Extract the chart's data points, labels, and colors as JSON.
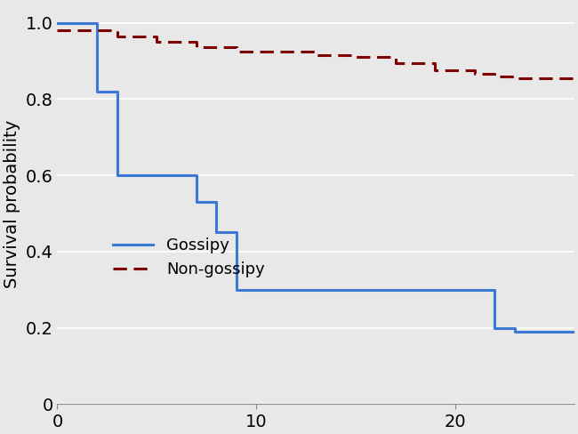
{
  "gossipy_x": [
    0,
    2,
    2,
    3,
    3,
    7,
    7,
    8,
    8,
    9,
    9,
    15,
    15,
    17,
    17,
    22,
    22,
    23,
    23,
    26
  ],
  "gossipy_y": [
    1.0,
    1.0,
    0.82,
    0.82,
    0.6,
    0.6,
    0.53,
    0.53,
    0.45,
    0.45,
    0.3,
    0.3,
    0.3,
    0.3,
    0.3,
    0.3,
    0.2,
    0.2,
    0.19,
    0.19
  ],
  "non_gossipy_x": [
    0,
    3,
    3,
    5,
    5,
    7,
    7,
    9,
    9,
    13,
    13,
    15,
    15,
    17,
    17,
    19,
    19,
    21,
    21,
    22,
    22,
    23,
    23,
    26
  ],
  "non_gossipy_y": [
    0.98,
    0.98,
    0.965,
    0.965,
    0.95,
    0.95,
    0.935,
    0.935,
    0.925,
    0.925,
    0.915,
    0.915,
    0.91,
    0.91,
    0.895,
    0.895,
    0.875,
    0.875,
    0.865,
    0.865,
    0.86,
    0.86,
    0.855,
    0.855
  ],
  "gossipy_color": "#3c78d8",
  "non_gossipy_color": "#7f0000",
  "background_color": "#e8e8e8",
  "ylabel": "Survival probability",
  "ylim": [
    0,
    1.05
  ],
  "xlim": [
    0,
    26
  ],
  "yticks": [
    0,
    0.2,
    0.4,
    0.6,
    0.8,
    1.0
  ],
  "ytick_labels": [
    "0",
    "0.2",
    "0.4",
    "0.6",
    "0.8",
    "1.0"
  ],
  "xticks": [
    0,
    10,
    20
  ],
  "xtick_labels": [
    "0",
    "10",
    "20"
  ],
  "legend_gossipy": "Gossipy",
  "legend_non_gossipy": "Non-gossipy",
  "ylabel_fontsize": 14,
  "tick_fontsize": 14,
  "legend_fontsize": 13,
  "linewidth": 2.2
}
